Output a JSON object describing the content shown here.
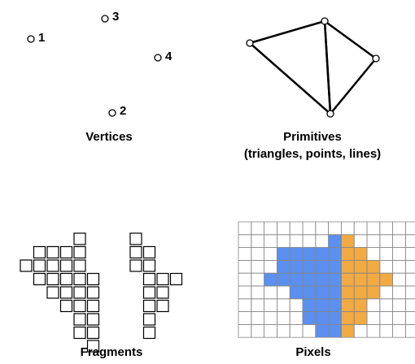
{
  "vertices_panel": {
    "caption": "Vertices",
    "vertex_labels": [
      "1",
      "2",
      "3",
      "4"
    ]
  },
  "primitives_panel": {
    "caption_line1": "Primitives",
    "caption_line2": "(triangles, points, lines)"
  },
  "fragments_panel": {
    "caption": "Fragments"
  },
  "pixels_panel": {
    "caption": "Pixels",
    "colors": {
      "blue_triangle": "#5b8ff0",
      "orange_triangle": "#f2aa43",
      "grid_line": "#888888"
    }
  }
}
